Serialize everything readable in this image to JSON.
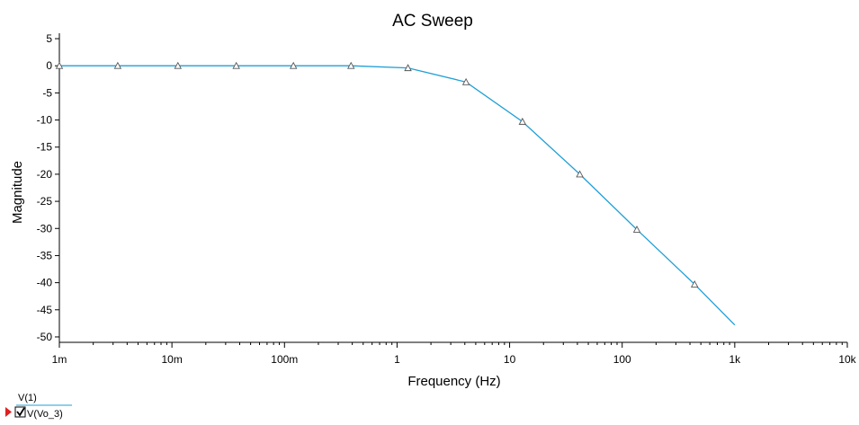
{
  "chart_data": {
    "type": "line",
    "title": "AC Sweep",
    "xlabel": "Frequency (Hz)",
    "ylabel": "Magnitude",
    "x_scale": "log",
    "xlim": [
      0.001,
      10000
    ],
    "ylim": [
      -51,
      6
    ],
    "x_ticks": [
      0.001,
      0.01,
      0.1,
      1,
      10,
      100,
      1000,
      10000
    ],
    "x_tick_labels": [
      "1m",
      "10m",
      "100m",
      "1",
      "10",
      "100",
      "1k",
      "10k"
    ],
    "y_ticks": [
      5,
      0,
      -5,
      -10,
      -15,
      -20,
      -25,
      -30,
      -35,
      -40,
      -45,
      -50
    ],
    "y_tick_labels": [
      "5",
      "0",
      "-5",
      "-10",
      "-15",
      "-20",
      "-25",
      "-30",
      "-35",
      "-40",
      "-45",
      "-50"
    ],
    "grid": false,
    "series": [
      {
        "name": "V(Vo_3)",
        "color": "#1e9fd6",
        "marker": "triangle",
        "x": [
          0.001,
          0.0033,
          0.0113,
          0.0373,
          0.12,
          0.39,
          1.25,
          4.1,
          13,
          42,
          135,
          440,
          1000
        ],
        "y": [
          0,
          0,
          0,
          0,
          0,
          0,
          -0.4,
          -3,
          -10.3,
          -20,
          -30.2,
          -40.3,
          -47.8
        ],
        "marker_x": [
          0.001,
          0.0033,
          0.0113,
          0.0373,
          0.12,
          0.39,
          1.25,
          4.1,
          13,
          42,
          135,
          440
        ],
        "marker_y": [
          0,
          0,
          0,
          0,
          0,
          0,
          -0.4,
          -3,
          -10.3,
          -20,
          -30.2,
          -40.3
        ]
      }
    ]
  },
  "legend": {
    "header": "V(1)",
    "entry": "V(Vo_3)",
    "checked": true,
    "marker_color": "#e02020"
  }
}
